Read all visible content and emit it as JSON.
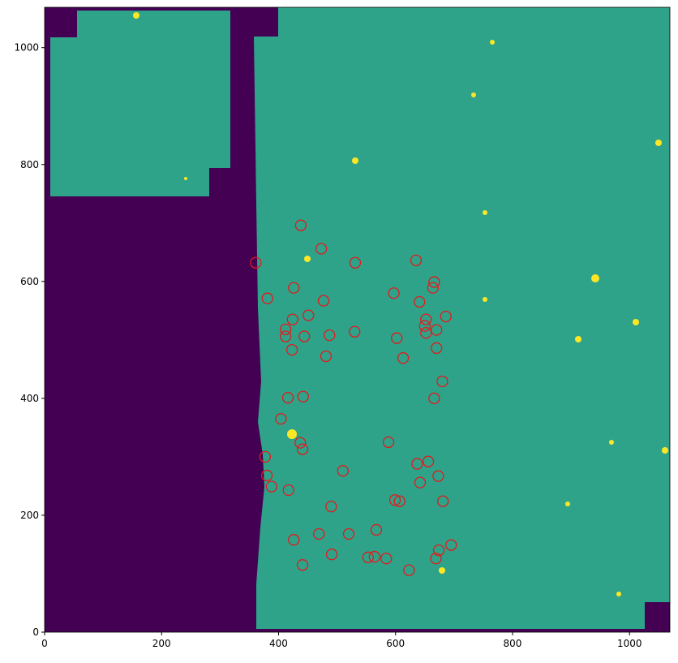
{
  "chart_data": {
    "type": "scatter",
    "x": [
      438,
      473,
      361,
      531,
      635,
      426,
      597,
      666,
      664,
      381,
      477,
      641,
      451,
      424,
      686,
      652,
      650,
      652,
      670,
      412,
      530,
      487,
      412,
      444,
      602,
      423,
      670,
      481,
      613,
      680,
      416,
      442,
      666,
      404,
      437,
      441,
      588,
      377,
      637,
      656,
      510,
      380,
      673,
      388,
      642,
      417,
      599,
      607,
      681,
      490,
      567,
      469,
      520,
      426,
      695,
      674,
      491,
      553,
      564,
      584,
      669,
      441,
      623
    ],
    "values": [
      696,
      656,
      632,
      632,
      636,
      589,
      580,
      599,
      589,
      571,
      567,
      565,
      542,
      535,
      540,
      535,
      524,
      512,
      517,
      518,
      514,
      508,
      506,
      506,
      503,
      483,
      486,
      472,
      469,
      429,
      401,
      403,
      400,
      365,
      324,
      313,
      325,
      300,
      288,
      292,
      276,
      268,
      267,
      249,
      256,
      243,
      226,
      224,
      224,
      215,
      175,
      168,
      168,
      158,
      149,
      140,
      133,
      128,
      129,
      126,
      126,
      115,
      106
    ],
    "color": "#e31a1c",
    "xlim": [
      0,
      1069
    ],
    "ylim": [
      0,
      1069
    ],
    "xticks": [
      0,
      200,
      400,
      600,
      800,
      1000
    ],
    "yticks": [
      0,
      200,
      400,
      600,
      800,
      1000
    ]
  }
}
